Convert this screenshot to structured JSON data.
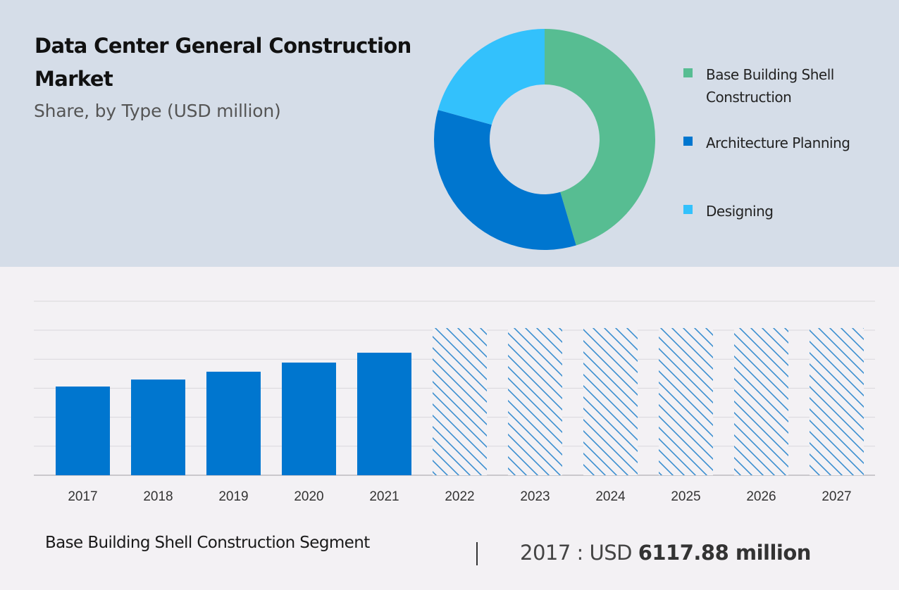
{
  "header": {
    "title": "Data Center General Construction Market",
    "subtitle": "Share, by Type (USD million)"
  },
  "colors": {
    "top_panel_bg": "#d5dde8",
    "page_bg": "#f3f1f4",
    "base_building": "#57bd92",
    "architecture": "#0076cf",
    "designing": "#33c1fc",
    "bar": "#0076cf",
    "hatch": "#3a8fd0",
    "grid": "#d9d7db"
  },
  "footer": {
    "segment_label": "Base Building Shell Construction Segment",
    "divider": "|",
    "year_prefix": "2017 : USD",
    "value": "6117.88 million"
  },
  "chart_data": [
    {
      "type": "pie",
      "variant": "donut",
      "title": "Share, by Type (USD million)",
      "legend_position": "right",
      "categories": [
        "Base Building Shell Construction",
        "Architecture Planning",
        "Designing"
      ],
      "values": [
        45.4,
        33.9,
        20.7
      ],
      "unit": "percent share (estimated)",
      "legend": [
        {
          "label": "Base Building Shell Construction",
          "color": "#57bd92"
        },
        {
          "label": "Architecture Planning",
          "color": "#0076cf"
        },
        {
          "label": "Designing",
          "color": "#33c1fc"
        }
      ]
    },
    {
      "type": "bar",
      "title": "Base Building Shell Construction Segment",
      "xlabel": "",
      "ylabel": "",
      "categories": [
        "2017",
        "2018",
        "2019",
        "2020",
        "2021",
        "2022",
        "2023",
        "2024",
        "2025",
        "2026",
        "2027"
      ],
      "values": [
        6117.88,
        6600,
        7140,
        7770,
        8450,
        10150,
        10150,
        10150,
        10150,
        10150,
        10150
      ],
      "forecast": [
        false,
        false,
        false,
        false,
        false,
        true,
        true,
        true,
        true,
        true,
        true
      ],
      "ylim": [
        0,
        12000
      ],
      "grid_step": 2000,
      "grid": true,
      "y_tick_labels_shown": false,
      "annotations": [
        "Forecast bars (2022-2027) shown with hatched fill"
      ]
    }
  ]
}
